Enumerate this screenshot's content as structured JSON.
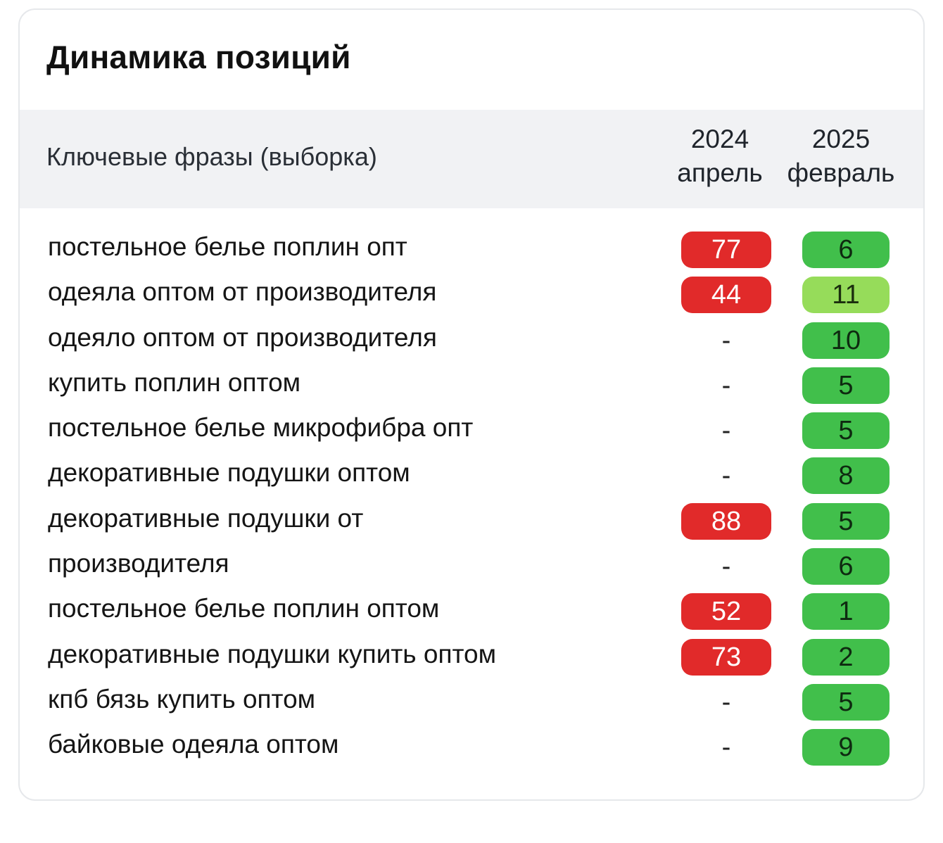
{
  "card": {
    "title": "Динамика позиций"
  },
  "table": {
    "header": {
      "phrases": "Ключевые фразы (выборка)",
      "col_2024": {
        "year": "2024",
        "month": "апрель"
      },
      "col_2025": {
        "year": "2025",
        "month": "февраль"
      }
    },
    "colors": {
      "bad": "#e12a2a",
      "good": "#41bf4b",
      "ok": "#96dc5a"
    },
    "rows": [
      {
        "phrase": "постельное белье поплин опт",
        "v2024": "77",
        "s2024": "bad",
        "v2025": "6",
        "s2025": "good"
      },
      {
        "phrase": "одеяла оптом от производителя",
        "v2024": "44",
        "s2024": "bad",
        "v2025": "11",
        "s2025": "ok"
      },
      {
        "phrase": "одеяло оптом от производителя",
        "v2024": "-",
        "s2024": "dash",
        "v2025": "10",
        "s2025": "good"
      },
      {
        "phrase": "купить поплин оптом",
        "v2024": "-",
        "s2024": "dash",
        "v2025": "5",
        "s2025": "good"
      },
      {
        "phrase": "постельное белье микрофибра опт",
        "v2024": "-",
        "s2024": "dash",
        "v2025": "5",
        "s2025": "good"
      },
      {
        "phrase": "декоративные подушки оптом",
        "v2024": "-",
        "s2024": "dash",
        "v2025": "8",
        "s2025": "good"
      },
      {
        "phrase": "декоративные подушки от",
        "v2024": "88",
        "s2024": "bad",
        "v2025": "5",
        "s2025": "good"
      },
      {
        "phrase": "производителя",
        "v2024": "-",
        "s2024": "dash",
        "v2025": "6",
        "s2025": "good"
      },
      {
        "phrase": "постельное белье поплин оптом",
        "v2024": "52",
        "s2024": "bad",
        "v2025": "1",
        "s2025": "good"
      },
      {
        "phrase": "декоративные подушки купить оптом",
        "v2024": "73",
        "s2024": "bad",
        "v2025": "2",
        "s2025": "good"
      },
      {
        "phrase": "кпб бязь купить оптом",
        "v2024": "-",
        "s2024": "dash",
        "v2025": "5",
        "s2025": "good"
      },
      {
        "phrase": "байковые одеяла оптом",
        "v2024": "-",
        "s2024": "dash",
        "v2025": "9",
        "s2025": "good"
      }
    ]
  }
}
